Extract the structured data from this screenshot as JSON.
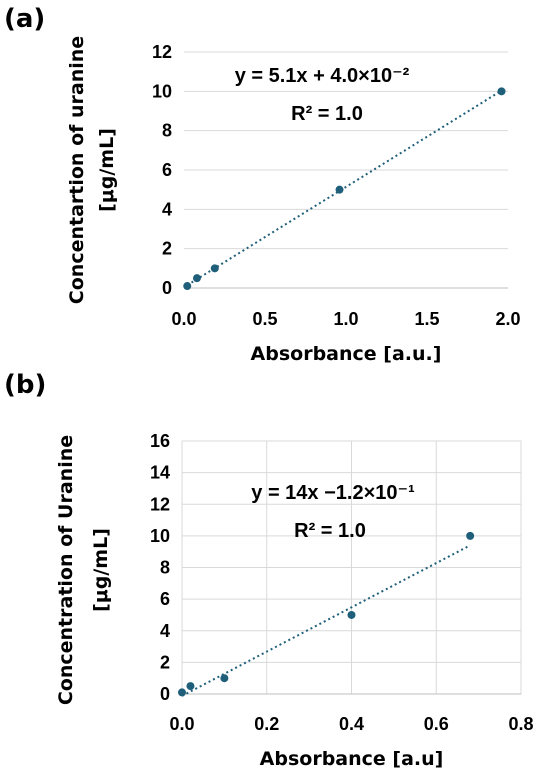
{
  "panels": [
    {
      "label": "(a)",
      "chart_data": {
        "type": "scatter",
        "xlabel": "Absorbance [a.u.]",
        "ylabel_lines": [
          "Concentartion of uranine",
          "[μg/mL]"
        ],
        "xlim": [
          0,
          2.0
        ],
        "ylim": [
          0,
          12
        ],
        "x_ticks": [
          "0.0",
          "0.5",
          "1.0",
          "1.5",
          "2.0"
        ],
        "y_ticks": [
          "0",
          "2",
          "4",
          "6",
          "8",
          "10",
          "12"
        ],
        "grid": "horizontal",
        "series": [
          {
            "x": [
              0.02,
              0.08,
              0.19,
              0.96,
              1.96
            ],
            "y": [
              0.1,
              0.5,
              1.0,
              5.0,
              10.0
            ]
          }
        ],
        "trendline": {
          "type": "linear",
          "slope": 5.1,
          "intercept": 0.04
        },
        "annotations": [
          "y = 5.1x + 4.0×10⁻²",
          "R² = 1.0"
        ],
        "marker_color": "#1f5f7a"
      }
    },
    {
      "label": "(b)",
      "chart_data": {
        "type": "scatter",
        "xlabel": "Absorbance [a.u]",
        "ylabel_lines": [
          "Concentration of Uranine",
          "[μg/mL]"
        ],
        "xlim": [
          0,
          0.8
        ],
        "ylim": [
          0,
          16
        ],
        "x_ticks": [
          "0.0",
          "0.2",
          "0.4",
          "0.6",
          "0.8"
        ],
        "y_ticks": [
          "0",
          "2",
          "4",
          "6",
          "8",
          "10",
          "12",
          "14",
          "16"
        ],
        "grid": "both",
        "series": [
          {
            "x": [
              0.0,
              0.02,
              0.1,
              0.4,
              0.68
            ],
            "y": [
              0.1,
              0.5,
              1.0,
              5.0,
              10.0
            ]
          }
        ],
        "trendline": {
          "type": "linear",
          "slope": 14,
          "intercept": -0.12
        },
        "annotations": [
          "y = 14x −1.2×10⁻¹",
          "R² = 1.0"
        ],
        "marker_color": "#1f5f7a"
      }
    }
  ]
}
